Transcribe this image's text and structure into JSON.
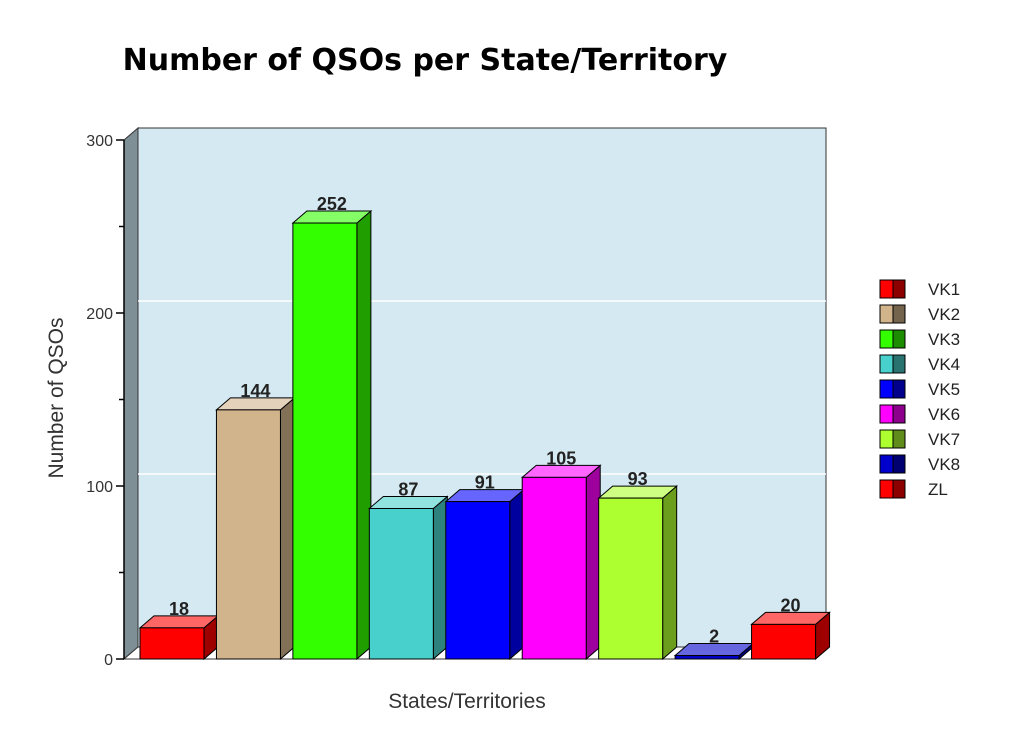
{
  "chart_data": {
    "type": "bar",
    "title": "Number of QSOs per State/Territory",
    "xlabel": "States/Territories",
    "ylabel": "Number of QSOs",
    "ylim": [
      0,
      300
    ],
    "yticks": [
      0,
      100,
      200,
      300
    ],
    "grid": true,
    "legend_position": "right",
    "categories": [
      "VK1",
      "VK2",
      "VK3",
      "VK4",
      "VK5",
      "VK6",
      "VK7",
      "VK8",
      "ZL"
    ],
    "values": [
      18,
      144,
      252,
      87,
      91,
      105,
      93,
      2,
      20
    ],
    "colors": [
      "#ff0000",
      "#d2b48c",
      "#33ff00",
      "#48d1cc",
      "#0000ff",
      "#ff00ff",
      "#adff2f",
      "#0000cd",
      "#ff0000"
    ],
    "plot_background": "#d4e9f1"
  }
}
